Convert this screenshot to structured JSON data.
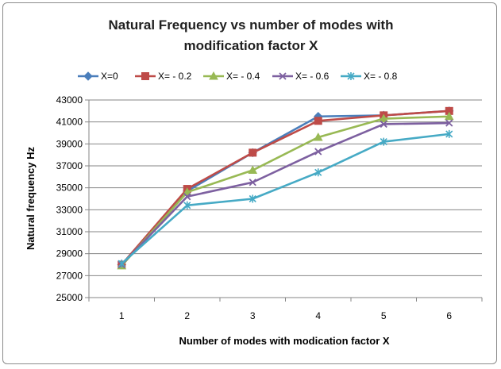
{
  "chart_data": {
    "type": "line",
    "title_lines": [
      "Natural Frequency vs number of modes with",
      "modification factor X"
    ],
    "xlabel": "Number of modes with modication factor X",
    "ylabel": "Natural frequency Hz",
    "categories": [
      "1",
      "2",
      "3",
      "4",
      "5",
      "6"
    ],
    "ylim": [
      25000,
      43000
    ],
    "yticks": [
      25000,
      27000,
      29000,
      31000,
      33000,
      35000,
      37000,
      39000,
      41000,
      43000
    ],
    "grid": true,
    "legend_position": "top",
    "series": [
      {
        "name": "X=0",
        "color": "#4a7ebb",
        "marker": "diamond",
        "values": [
          28000,
          34700,
          38200,
          41500,
          41600,
          42000
        ]
      },
      {
        "name": "X= - 0.2",
        "color": "#be4b48",
        "marker": "square",
        "values": [
          28000,
          34900,
          38200,
          41100,
          41600,
          42000
        ]
      },
      {
        "name": "X= - 0.4",
        "color": "#98b954",
        "marker": "triangle",
        "values": [
          27900,
          34600,
          36600,
          39600,
          41300,
          41500
        ]
      },
      {
        "name": "X= - 0.6",
        "color": "#7d60a0",
        "marker": "x",
        "values": [
          28000,
          34200,
          35500,
          38300,
          40800,
          40900
        ]
      },
      {
        "name": "X= - 0.8",
        "color": "#46aac5",
        "marker": "star",
        "values": [
          28100,
          33400,
          34000,
          36400,
          39200,
          39900
        ]
      }
    ]
  }
}
